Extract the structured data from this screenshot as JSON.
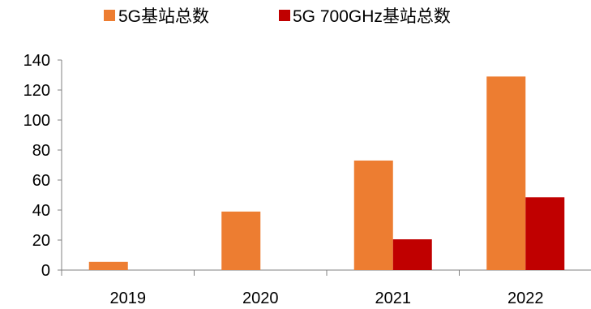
{
  "chart_data": {
    "type": "bar",
    "categories": [
      "2019",
      "2020",
      "2021",
      "2022"
    ],
    "series": [
      {
        "name": "5G基站总数",
        "color": "#ED7D31",
        "values": [
          5.5,
          39,
          73,
          129
        ]
      },
      {
        "name": "5G 700GHz基站总数",
        "color": "#C00000",
        "values": [
          null,
          null,
          20.5,
          48.5
        ]
      }
    ],
    "ylim": [
      0,
      140
    ],
    "yticks": [
      0,
      20,
      40,
      60,
      80,
      100,
      120,
      140
    ],
    "grid": false,
    "legend_position": "top-center",
    "title": "",
    "xlabel": "",
    "ylabel": ""
  }
}
